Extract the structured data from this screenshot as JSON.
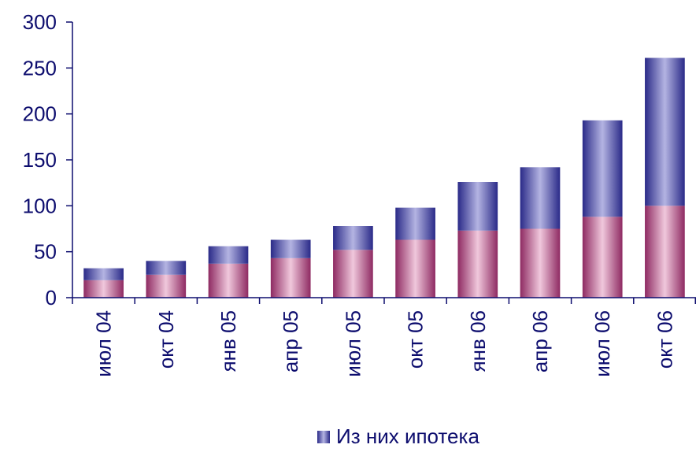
{
  "chart_data": {
    "type": "bar",
    "stacked": true,
    "categories": [
      "июл 04",
      "окт 04",
      "янв 05",
      "апр 05",
      "июл 05",
      "окт 05",
      "янв 06",
      "апр 06",
      "июл 06",
      "окт 06"
    ],
    "series": [
      {
        "values": [
          19,
          25,
          37,
          43,
          52,
          63,
          73,
          75,
          88,
          100
        ],
        "color": "#a03c78"
      },
      {
        "name": "Из них ипотека",
        "values": [
          13,
          15,
          19,
          20,
          26,
          35,
          53,
          67,
          105,
          161
        ],
        "color": "#3a3a9c"
      }
    ],
    "ylim": [
      0,
      300
    ],
    "yticks": [
      0,
      50,
      100,
      150,
      200,
      250,
      300
    ],
    "grid": false,
    "legend": {
      "position": "bottom",
      "label": "Из них ипотека"
    }
  }
}
